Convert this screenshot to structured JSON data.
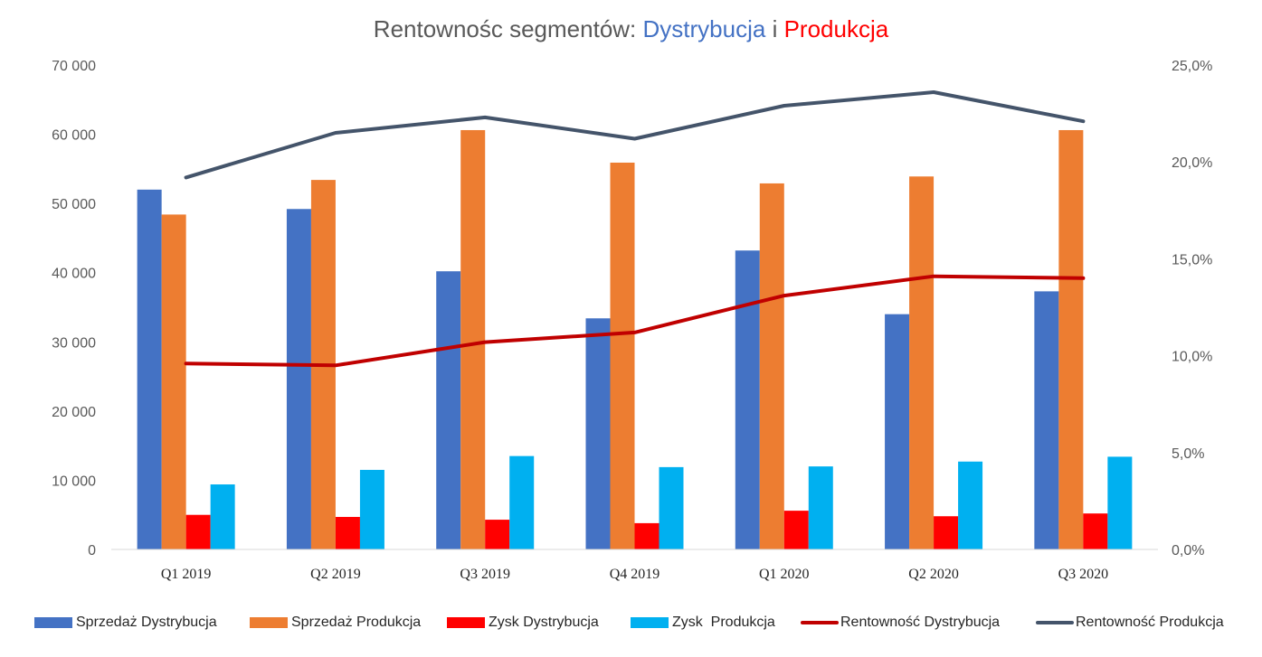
{
  "title": {
    "part1": "Rentownośc segmentów: ",
    "part2": "Dystrybucja",
    "part3": " i ",
    "part4": "Produkcja"
  },
  "colors": {
    "sprzedaz_dystrybucja": "#4472C4",
    "sprzedaz_produkcja": "#ED7D31",
    "zysk_dystrybucja": "#FF0000",
    "zysk_produkcja": "#00B0F0",
    "rentownosc_dystrybucja": "#C00000",
    "rentownosc_produkcja": "#44546A",
    "title_dystrybucja": "#4472C4",
    "title_produkcja": "#FF0000"
  },
  "chart_data": {
    "type": "bar",
    "categories": [
      "Q1 2019",
      "Q2 2019",
      "Q3 2019",
      "Q4 2019",
      "Q1 2020",
      "Q2 2020",
      "Q3 2020"
    ],
    "y_left": {
      "ylim": [
        0,
        70000
      ],
      "ticks": [
        0,
        10000,
        20000,
        30000,
        40000,
        50000,
        60000,
        70000
      ],
      "tick_labels": [
        "0",
        "10 000",
        "20 000",
        "30 000",
        "40 000",
        "50 000",
        "60 000",
        "70 000"
      ]
    },
    "y_right": {
      "ylim": [
        0,
        25
      ],
      "ticks": [
        0,
        5,
        10,
        15,
        20,
        25
      ],
      "tick_labels": [
        "0,0%",
        "5,0%",
        "10,0%",
        "15,0%",
        "20,0%",
        "25,0%"
      ]
    },
    "bar_series": [
      {
        "name": "Sprzedaż Dystrybucja",
        "values": [
          52000,
          49200,
          40200,
          33400,
          43200,
          34000,
          37300
        ]
      },
      {
        "name": "Sprzedaż Produkcja",
        "values": [
          48400,
          53400,
          60600,
          55900,
          52900,
          53900,
          60600
        ]
      },
      {
        "name": "Zysk Dystrybucja",
        "values": [
          5000,
          4700,
          4300,
          3800,
          5600,
          4800,
          5200
        ]
      },
      {
        "name": "Zysk  Produkcja",
        "values": [
          9400,
          11500,
          13500,
          11900,
          12000,
          12700,
          13400
        ]
      }
    ],
    "line_series": [
      {
        "name": "Rentowność Dystrybucja",
        "axis": "right",
        "values": [
          9.6,
          9.5,
          10.7,
          11.2,
          13.1,
          14.1,
          14.0
        ]
      },
      {
        "name": "Rentowność Produkcja",
        "axis": "right",
        "values": [
          19.2,
          21.5,
          22.3,
          21.2,
          22.9,
          23.6,
          22.1
        ]
      }
    ],
    "legend_position": "bottom",
    "grid": false
  }
}
